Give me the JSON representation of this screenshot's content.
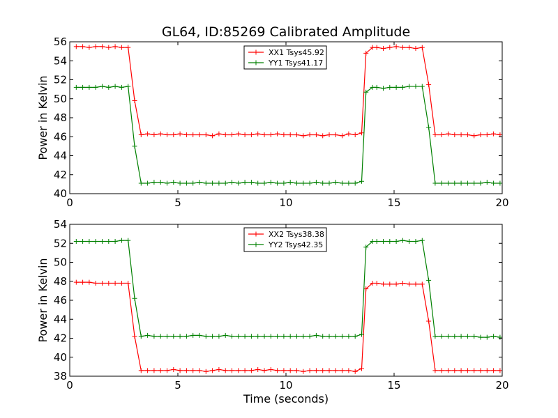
{
  "chart_data": {
    "title": "GL64, ID:85269 Calibrated Amplitude",
    "xlabel": "Time (seconds)",
    "type": "line",
    "panels": [
      {
        "type": "line",
        "ylabel": "Power in Kelvin",
        "xlim": [
          0,
          20
        ],
        "ylim": [
          40,
          56
        ],
        "xticks": [
          0,
          5,
          10,
          15,
          20
        ],
        "yticks": [
          40,
          42,
          44,
          46,
          48,
          50,
          52,
          54,
          56
        ],
        "legend_position": "top-center",
        "grid": false,
        "x": [
          0.3,
          0.6,
          0.9,
          1.2,
          1.5,
          1.8,
          2.1,
          2.4,
          2.7,
          3.0,
          3.3,
          3.6,
          3.9,
          4.2,
          4.5,
          4.8,
          5.1,
          5.4,
          5.7,
          6.0,
          6.3,
          6.6,
          6.9,
          7.2,
          7.5,
          7.8,
          8.1,
          8.4,
          8.7,
          9.0,
          9.3,
          9.6,
          9.9,
          10.2,
          10.5,
          10.8,
          11.1,
          11.4,
          11.7,
          12.0,
          12.3,
          12.6,
          12.9,
          13.2,
          13.5,
          13.7,
          14.0,
          14.2,
          14.5,
          14.8,
          15.1,
          15.4,
          15.7,
          16.0,
          16.3,
          16.6,
          16.9,
          17.2,
          17.5,
          17.8,
          18.1,
          18.4,
          18.7,
          19.0,
          19.3,
          19.6,
          19.9
        ],
        "series": [
          {
            "name": "XX1 Tsys45.92",
            "color": "#ff0000",
            "values": [
              55.5,
              55.5,
              55.4,
              55.5,
              55.5,
              55.4,
              55.5,
              55.4,
              55.4,
              49.8,
              46.2,
              46.3,
              46.2,
              46.3,
              46.2,
              46.2,
              46.3,
              46.2,
              46.2,
              46.2,
              46.2,
              46.1,
              46.3,
              46.2,
              46.2,
              46.3,
              46.2,
              46.2,
              46.3,
              46.2,
              46.2,
              46.3,
              46.2,
              46.2,
              46.2,
              46.1,
              46.2,
              46.2,
              46.1,
              46.2,
              46.2,
              46.1,
              46.3,
              46.2,
              46.4,
              54.8,
              55.4,
              55.4,
              55.3,
              55.4,
              55.5,
              55.4,
              55.4,
              55.3,
              55.4,
              51.5,
              46.2,
              46.2,
              46.3,
              46.2,
              46.2,
              46.2,
              46.1,
              46.2,
              46.2,
              46.3,
              46.2
            ]
          },
          {
            "name": "YY1 Tsys41.17",
            "color": "#008000",
            "values": [
              51.2,
              51.2,
              51.2,
              51.2,
              51.3,
              51.2,
              51.3,
              51.2,
              51.3,
              45.0,
              41.1,
              41.1,
              41.2,
              41.2,
              41.1,
              41.2,
              41.1,
              41.1,
              41.1,
              41.2,
              41.1,
              41.1,
              41.1,
              41.1,
              41.2,
              41.1,
              41.2,
              41.2,
              41.1,
              41.1,
              41.2,
              41.1,
              41.1,
              41.2,
              41.1,
              41.1,
              41.1,
              41.2,
              41.1,
              41.1,
              41.2,
              41.1,
              41.1,
              41.1,
              41.3,
              50.7,
              51.2,
              51.2,
              51.1,
              51.2,
              51.2,
              51.2,
              51.3,
              51.3,
              51.3,
              47.0,
              41.1,
              41.1,
              41.1,
              41.1,
              41.1,
              41.1,
              41.1,
              41.1,
              41.2,
              41.1,
              41.1
            ]
          }
        ]
      },
      {
        "type": "line",
        "ylabel": "Power in Kelvin",
        "xlabel": "Time (seconds)",
        "xlim": [
          0,
          20
        ],
        "ylim": [
          38,
          54
        ],
        "xticks": [
          0,
          5,
          10,
          15,
          20
        ],
        "yticks": [
          38,
          40,
          42,
          44,
          46,
          48,
          50,
          52,
          54
        ],
        "legend_position": "top-center",
        "grid": false,
        "x": [
          0.3,
          0.6,
          0.9,
          1.2,
          1.5,
          1.8,
          2.1,
          2.4,
          2.7,
          3.0,
          3.3,
          3.6,
          3.9,
          4.2,
          4.5,
          4.8,
          5.1,
          5.4,
          5.7,
          6.0,
          6.3,
          6.6,
          6.9,
          7.2,
          7.5,
          7.8,
          8.1,
          8.4,
          8.7,
          9.0,
          9.3,
          9.6,
          9.9,
          10.2,
          10.5,
          10.8,
          11.1,
          11.4,
          11.7,
          12.0,
          12.3,
          12.6,
          12.9,
          13.2,
          13.5,
          13.7,
          14.0,
          14.2,
          14.5,
          14.8,
          15.1,
          15.4,
          15.7,
          16.0,
          16.3,
          16.6,
          16.9,
          17.2,
          17.5,
          17.8,
          18.1,
          18.4,
          18.7,
          19.0,
          19.3,
          19.6,
          19.9
        ],
        "series": [
          {
            "name": "XX2 Tsys38.38",
            "color": "#ff0000",
            "values": [
              47.9,
              47.9,
              47.9,
              47.8,
              47.8,
              47.8,
              47.8,
              47.8,
              47.8,
              42.2,
              38.6,
              38.6,
              38.6,
              38.6,
              38.6,
              38.7,
              38.6,
              38.6,
              38.6,
              38.6,
              38.5,
              38.6,
              38.7,
              38.6,
              38.6,
              38.6,
              38.6,
              38.6,
              38.7,
              38.6,
              38.7,
              38.6,
              38.6,
              38.6,
              38.6,
              38.5,
              38.6,
              38.6,
              38.6,
              38.6,
              38.6,
              38.6,
              38.6,
              38.5,
              38.8,
              47.2,
              47.8,
              47.8,
              47.7,
              47.7,
              47.7,
              47.8,
              47.7,
              47.7,
              47.7,
              43.8,
              38.6,
              38.6,
              38.6,
              38.6,
              38.6,
              38.6,
              38.6,
              38.6,
              38.6,
              38.6,
              38.6
            ]
          },
          {
            "name": "YY2 Tsys42.35",
            "color": "#008000",
            "values": [
              52.2,
              52.2,
              52.2,
              52.2,
              52.2,
              52.2,
              52.2,
              52.3,
              52.3,
              46.2,
              42.2,
              42.3,
              42.2,
              42.2,
              42.2,
              42.2,
              42.2,
              42.2,
              42.3,
              42.3,
              42.2,
              42.2,
              42.2,
              42.3,
              42.2,
              42.2,
              42.2,
              42.2,
              42.2,
              42.2,
              42.2,
              42.2,
              42.2,
              42.2,
              42.2,
              42.2,
              42.2,
              42.3,
              42.2,
              42.2,
              42.2,
              42.2,
              42.2,
              42.2,
              42.4,
              51.6,
              52.2,
              52.2,
              52.2,
              52.2,
              52.2,
              52.3,
              52.2,
              52.2,
              52.3,
              48.1,
              42.2,
              42.2,
              42.2,
              42.2,
              42.2,
              42.2,
              42.2,
              42.1,
              42.1,
              42.2,
              42.1
            ]
          }
        ]
      }
    ]
  }
}
